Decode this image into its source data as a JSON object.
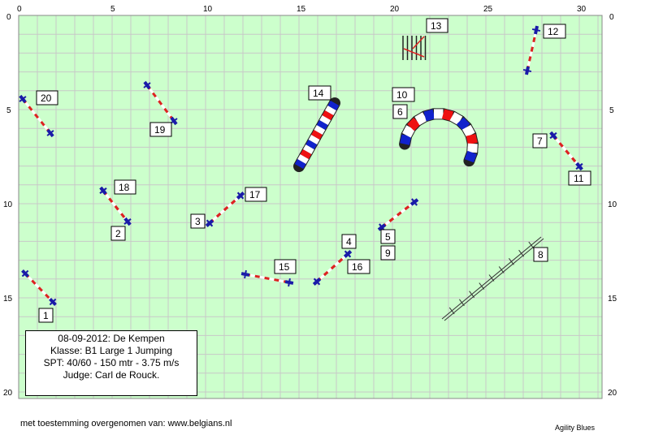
{
  "axes": {
    "x_ticks": [
      "0",
      "5",
      "10",
      "15",
      "20",
      "25",
      "30"
    ],
    "y_ticks": [
      "0",
      "5",
      "10",
      "15",
      "20"
    ]
  },
  "colors": {
    "field": "#ccffcc",
    "grid": "#c8c8c8",
    "bar_red": "#dd2222",
    "stand_blue": "#1a1aa8",
    "tunnel_red": "#ee1111",
    "tunnel_blue": "#1122cc"
  },
  "obstacles": {
    "jumps": [
      "1",
      "2",
      "3",
      "4",
      "5",
      "7",
      "9",
      "11",
      "12",
      "15",
      "16",
      "17",
      "18",
      "19",
      "20"
    ],
    "tunnels": [
      "6",
      "10",
      "14"
    ],
    "weave": "13",
    "walk_ladder": "8"
  },
  "info": {
    "date_event": "08-09-2012: De Kempen",
    "class": "Klasse: B1 Large 1 Jumping",
    "spt": "SPT: 40/60 - 150 mtr - 3.75 m/s",
    "judge": "Judge: Carl de Rouck."
  },
  "footer": {
    "credit": "met toestemming overgenomen van: www.belgians.nl",
    "brand": "Agility Blues"
  }
}
